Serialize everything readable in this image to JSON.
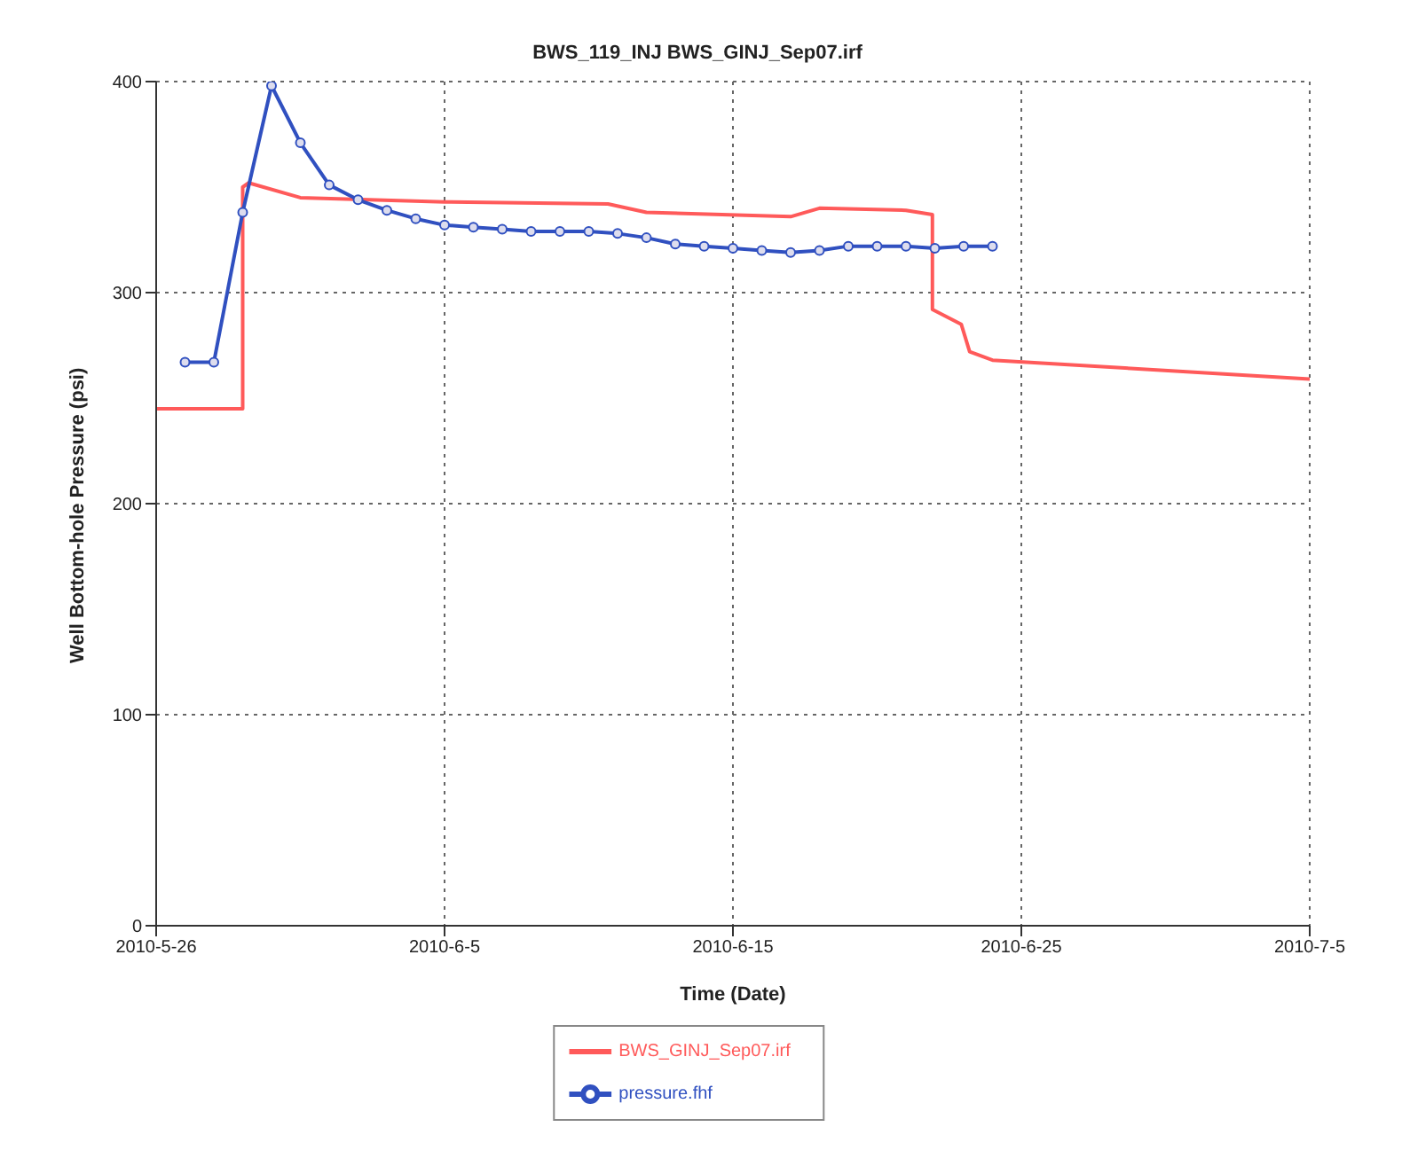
{
  "chart_data": {
    "type": "line",
    "title": "BWS_119_INJ BWS_GINJ_Sep07.irf",
    "xlabel": "Time (Date)",
    "ylabel": "Well Bottom-hole Pressure (psi)",
    "xlim": [
      "2010-05-26",
      "2010-07-05"
    ],
    "xticks": [
      {
        "value": "2010-05-26",
        "label": "2010-5-26"
      },
      {
        "value": "2010-06-05",
        "label": "2010-6-5"
      },
      {
        "value": "2010-06-15",
        "label": "2010-6-15"
      },
      {
        "value": "2010-06-25",
        "label": "2010-6-25"
      },
      {
        "value": "2010-07-05",
        "label": "2010-7-5"
      }
    ],
    "ylim": [
      0,
      400
    ],
    "yticks": [
      0,
      100,
      200,
      300,
      400
    ],
    "grid": true,
    "legend": "bottom",
    "line_style": "solid",
    "series": [
      {
        "name": "BWS_GINJ_Sep07.irf",
        "color": "#ff5a5a",
        "marker": "none",
        "x": [
          "2010-05-26",
          "2010-05-29",
          "2010-05-29",
          "2010-05-29T05:00",
          "2010-05-31",
          "2010-06-05",
          "2010-06-10T16:00",
          "2010-06-12",
          "2010-06-17",
          "2010-06-18",
          "2010-06-21",
          "2010-06-21T22:00",
          "2010-06-21T22:00",
          "2010-06-22T22:00",
          "2010-06-23T05:00",
          "2010-06-24",
          "2010-07-05"
        ],
        "values": [
          245,
          245,
          350,
          352,
          345,
          343,
          342,
          338,
          336,
          340,
          339,
          337,
          292,
          285,
          272,
          268,
          259
        ]
      },
      {
        "name": "pressure.fhf",
        "color": "#3050c0",
        "marker": "circle",
        "x": [
          "2010-05-27",
          "2010-05-28",
          "2010-05-29",
          "2010-05-30",
          "2010-05-31",
          "2010-06-01",
          "2010-06-02",
          "2010-06-03",
          "2010-06-04",
          "2010-06-05",
          "2010-06-06",
          "2010-06-07",
          "2010-06-08",
          "2010-06-09",
          "2010-06-10",
          "2010-06-11",
          "2010-06-12",
          "2010-06-13",
          "2010-06-14",
          "2010-06-15",
          "2010-06-16",
          "2010-06-17",
          "2010-06-18",
          "2010-06-19",
          "2010-06-20",
          "2010-06-21",
          "2010-06-22",
          "2010-06-23",
          "2010-06-24"
        ],
        "values": [
          267,
          267,
          338,
          398,
          371,
          351,
          344,
          339,
          335,
          332,
          331,
          330,
          329,
          329,
          329,
          328,
          326,
          323,
          322,
          321,
          320,
          319,
          320,
          322,
          322,
          322,
          321,
          322,
          322
        ]
      }
    ]
  }
}
